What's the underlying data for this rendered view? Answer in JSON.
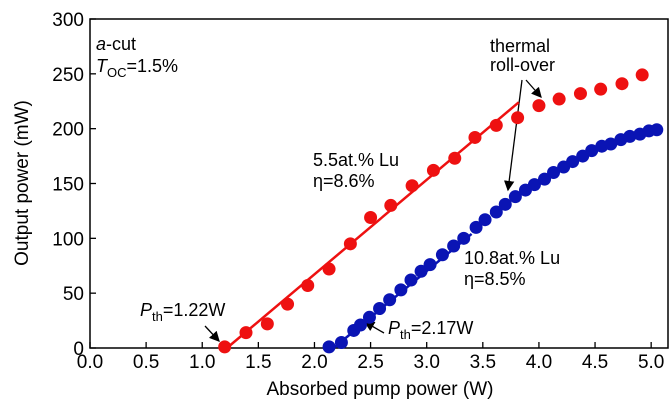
{
  "chart_data": {
    "type": "scatter",
    "xlabel": "Absorbed pump power (W)",
    "ylabel": "Output power (mW)",
    "xlim": [
      0,
      5.15
    ],
    "ylim": [
      0,
      300
    ],
    "xticks": [
      {
        "value": 0,
        "label": "0.0"
      },
      0.5,
      {
        "value": 1,
        "label": "1.0"
      },
      1.5,
      {
        "value": 2,
        "label": "2.0"
      },
      2.5,
      {
        "value": 3,
        "label": "3.0"
      },
      3.5,
      {
        "value": 4,
        "label": "4.0"
      },
      4.5,
      {
        "value": 5,
        "label": "5.0"
      }
    ],
    "yticks": [
      0,
      50,
      100,
      150,
      200,
      250,
      300
    ],
    "series": [
      {
        "color": "#ee1111",
        "x": [
          1.2,
          1.39,
          1.58,
          1.76,
          1.94,
          2.13,
          2.32,
          2.5,
          2.68,
          2.87,
          3.06,
          3.25,
          3.43,
          3.62,
          3.81,
          4.0,
          4.18,
          4.37,
          4.55,
          4.74,
          4.92
        ],
        "values": [
          1,
          14,
          22,
          40,
          57,
          72,
          95,
          119,
          130,
          148,
          162,
          173,
          192,
          203,
          210,
          221,
          227,
          232,
          236,
          241,
          249
        ]
      },
      {
        "color": "#0a14b4",
        "x": [
          2.13,
          2.24,
          2.35,
          2.41,
          2.49,
          2.58,
          2.67,
          2.77,
          2.86,
          2.95,
          3.03,
          3.14,
          3.24,
          3.33,
          3.44,
          3.52,
          3.62,
          3.7,
          3.79,
          3.88,
          3.96,
          4.05,
          4.13,
          4.22,
          4.3,
          4.39,
          4.47,
          4.56,
          4.64,
          4.73,
          4.81,
          4.9,
          4.98,
          5.05
        ],
        "values": [
          1,
          5,
          16,
          21,
          28,
          36,
          44,
          53,
          62,
          70,
          76,
          85,
          93,
          100,
          110,
          117,
          124,
          131,
          138,
          144,
          149,
          154,
          160,
          165,
          170,
          175,
          180,
          184,
          186,
          190,
          193,
          195,
          198,
          199
        ]
      }
    ],
    "fits": [
      {
        "color": "#ee1111",
        "x": [
          1.22,
          3.82
        ],
        "values": [
          0,
          224
        ]
      },
      {
        "color": "#0a14b4",
        "x": [
          2.17,
          3.4
        ],
        "values": [
          0,
          104
        ]
      }
    ],
    "annotations": {
      "cut": {
        "italic": "a",
        "rest": "-cut"
      },
      "toc": {
        "main": "T",
        "sub": "OC",
        "rest": "=1.5%"
      },
      "rolloff": [
        "thermal",
        "roll-over"
      ],
      "red": [
        "5.5at.% Lu",
        "η=8.6%"
      ],
      "blue": [
        "10.8at.% Lu",
        "η=8.5%"
      ],
      "pth_red": {
        "main": "P",
        "sub": "th",
        "rest": "=1.22W"
      },
      "pth_blue": {
        "main": "P",
        "sub": "th",
        "rest": "=2.17W"
      }
    }
  }
}
